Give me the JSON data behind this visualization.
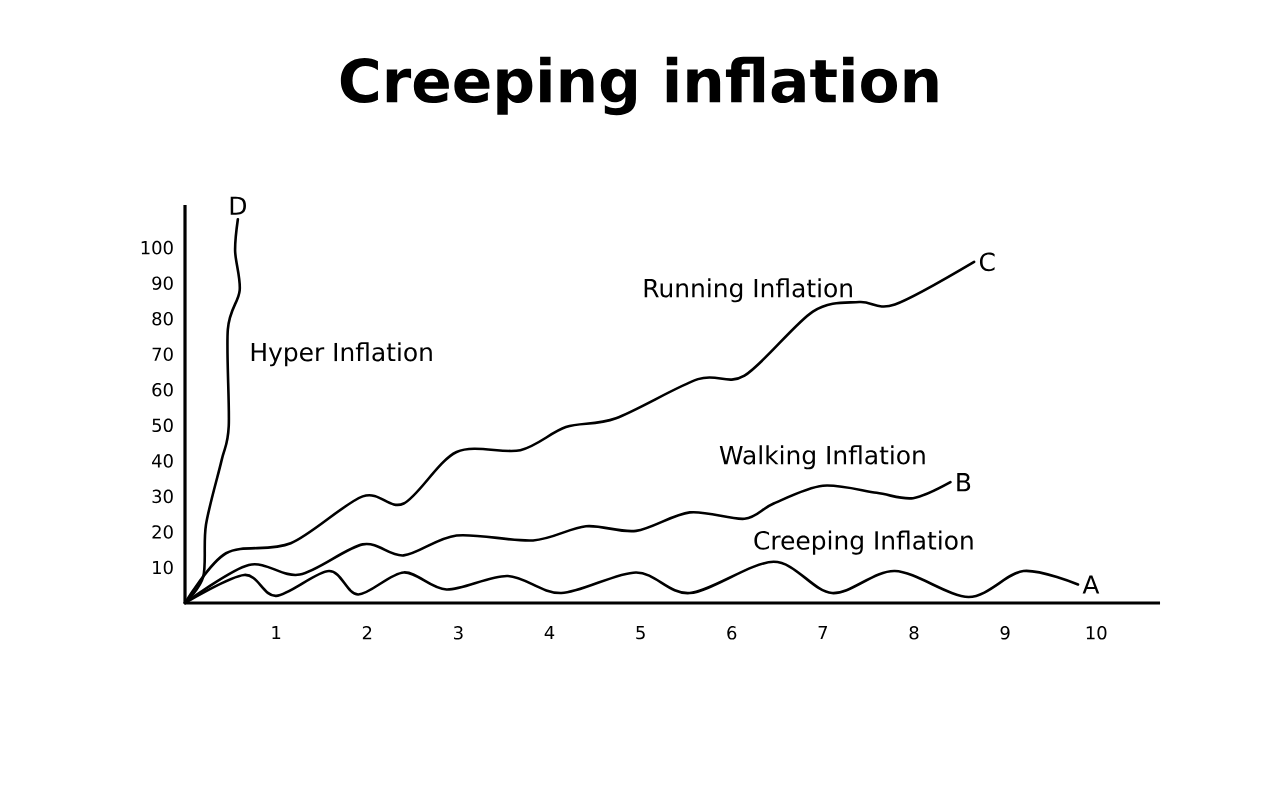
{
  "chart_data": {
    "type": "line",
    "title": "Creeping inflation",
    "xlim": [
      0,
      10.7
    ],
    "ylim": [
      0,
      112
    ],
    "xticks": [
      1,
      2,
      3,
      4,
      5,
      6,
      7,
      8,
      9,
      10
    ],
    "yticks": [
      10,
      20,
      30,
      40,
      50,
      60,
      70,
      80,
      90,
      100
    ],
    "grid": false,
    "legend": false,
    "marker": "none",
    "line_style": "solid",
    "series": [
      {
        "name": "Creeping Inflation",
        "color": "#000000",
        "x": [
          0,
          0.65,
          1.0,
          1.58,
          1.9,
          2.4,
          2.87,
          3.54,
          4.13,
          4.95,
          5.54,
          6.46,
          7.1,
          7.79,
          8.6,
          9.2,
          9.8
        ],
        "values": [
          0,
          7.9,
          2,
          9,
          2.4,
          8.6,
          3.8,
          7.6,
          2.8,
          8.6,
          2.8,
          11.6,
          2.8,
          9,
          1.7,
          9,
          5.2
        ]
      },
      {
        "name": "Walking Inflation",
        "color": "#000000",
        "x": [
          0,
          0.7,
          1.26,
          1.95,
          2.4,
          2.98,
          3.82,
          4.4,
          4.95,
          5.54,
          6.14,
          6.46,
          7.0,
          7.59,
          7.99,
          8.4
        ],
        "values": [
          0,
          10.7,
          8,
          16.5,
          13.4,
          19,
          17.6,
          21.6,
          20.3,
          25.5,
          23.7,
          28,
          33,
          31,
          29.5,
          34
        ]
      },
      {
        "name": "Running Inflation",
        "color": "#000000",
        "x": [
          0,
          0.45,
          1.16,
          1.95,
          2.4,
          2.98,
          3.68,
          4.18,
          4.73,
          5.63,
          6.14,
          6.89,
          7.4,
          7.79,
          8.66
        ],
        "values": [
          0,
          14,
          16.8,
          30,
          28,
          42.5,
          43,
          49.5,
          52,
          63,
          64,
          82,
          84.7,
          84,
          96
        ]
      },
      {
        "name": "Hyper Inflation",
        "color": "#000000",
        "x": [
          0,
          0.2,
          0.23,
          0.4,
          0.48,
          0.47,
          0.6,
          0.55,
          0.58
        ],
        "values": [
          0,
          7.4,
          22,
          40,
          49.8,
          77,
          88,
          99,
          108
        ]
      }
    ],
    "annotations": [
      {
        "text": "A",
        "x": 9.8,
        "y": 5.2
      },
      {
        "text": "B",
        "x": 8.4,
        "y": 34
      },
      {
        "text": "C",
        "x": 8.66,
        "y": 96
      },
      {
        "text": "D",
        "x": 0.58,
        "y": 108
      }
    ]
  }
}
